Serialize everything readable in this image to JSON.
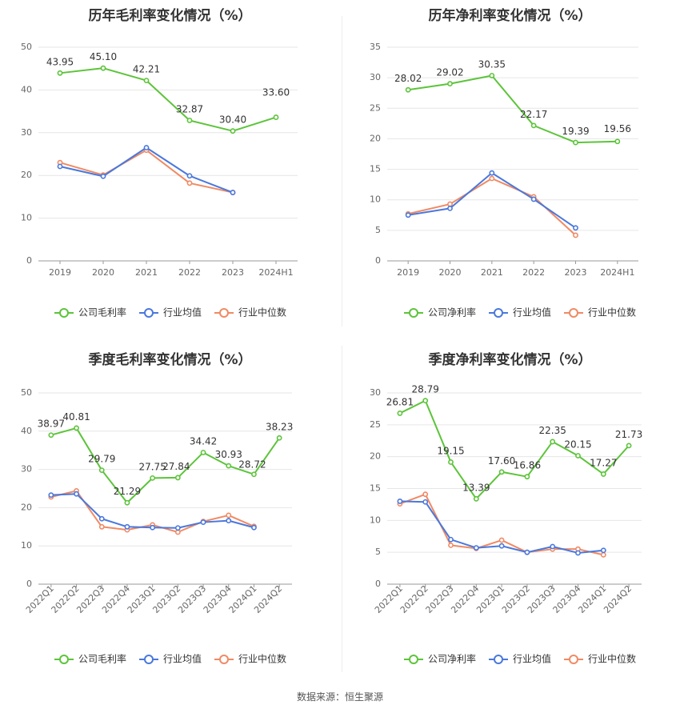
{
  "source": "数据来源：恒生聚源",
  "colors": {
    "company": "#5cc43a",
    "industry_avg": "#4a78dc",
    "industry_median": "#f08a64",
    "grid": "#e6e6e6",
    "axis": "#999999",
    "text": "#666666",
    "title": "#333333"
  },
  "chart_data": [
    {
      "type": "line",
      "title": "历年毛利率变化情况（%）",
      "categories": [
        "2019",
        "2020",
        "2021",
        "2022",
        "2023",
        "2024H1"
      ],
      "ylim": [
        0,
        50
      ],
      "yticks": [
        0,
        10,
        20,
        30,
        40,
        50
      ],
      "legend_position": "bottom",
      "rotate_x_labels": false,
      "series": [
        {
          "name": "公司毛利率",
          "color": "#5cc43a",
          "labels": true,
          "values": [
            43.95,
            45.1,
            42.21,
            32.87,
            30.4,
            33.6
          ],
          "value_labels": [
            "43.95",
            "45.10",
            "42.21",
            "32.87",
            "30.40",
            "33.60"
          ]
        },
        {
          "name": "行业均值",
          "color": "#4a78dc",
          "labels": false,
          "values": [
            22.1,
            19.8,
            26.5,
            19.9,
            16.0,
            null
          ]
        },
        {
          "name": "行业中位数",
          "color": "#f08a64",
          "labels": false,
          "values": [
            23.0,
            20.1,
            25.9,
            18.2,
            16.0,
            null
          ]
        }
      ]
    },
    {
      "type": "line",
      "title": "历年净利率变化情况（%）",
      "categories": [
        "2019",
        "2020",
        "2021",
        "2022",
        "2023",
        "2024H1"
      ],
      "ylim": [
        0,
        35
      ],
      "yticks": [
        0,
        5,
        10,
        15,
        20,
        25,
        30,
        35
      ],
      "legend_position": "bottom",
      "rotate_x_labels": false,
      "series": [
        {
          "name": "公司净利率",
          "color": "#5cc43a",
          "labels": true,
          "values": [
            28.02,
            29.02,
            30.35,
            22.17,
            19.39,
            19.56
          ],
          "value_labels": [
            "28.02",
            "29.02",
            "30.35",
            "22.17",
            "19.39",
            "19.56"
          ]
        },
        {
          "name": "行业均值",
          "color": "#4a78dc",
          "labels": false,
          "values": [
            7.5,
            8.6,
            14.4,
            10.1,
            5.4,
            null
          ]
        },
        {
          "name": "行业中位数",
          "color": "#f08a64",
          "labels": false,
          "values": [
            7.7,
            9.3,
            13.5,
            10.5,
            4.2,
            null
          ]
        }
      ]
    },
    {
      "type": "line",
      "title": "季度毛利率变化情况（%）",
      "categories": [
        "2022Q1",
        "2022Q2",
        "2022Q3",
        "2022Q4",
        "2023Q1",
        "2023Q2",
        "2023Q3",
        "2023Q4",
        "2024Q1",
        "2024Q2"
      ],
      "ylim": [
        0,
        50
      ],
      "yticks": [
        0,
        10,
        20,
        30,
        40,
        50
      ],
      "legend_position": "bottom",
      "rotate_x_labels": true,
      "series": [
        {
          "name": "公司毛利率",
          "color": "#5cc43a",
          "labels": true,
          "values": [
            38.97,
            40.81,
            29.79,
            21.29,
            27.75,
            27.84,
            34.42,
            30.93,
            28.72,
            38.23
          ],
          "value_labels": [
            "38.97",
            "40.81",
            "29.79",
            "21.29",
            "27.75",
            "27.84",
            "34.42",
            "30.93",
            "28.72",
            "38.23"
          ]
        },
        {
          "name": "行业均值",
          "color": "#4a78dc",
          "labels": false,
          "values": [
            23.3,
            23.6,
            17.1,
            15.0,
            14.8,
            14.7,
            16.2,
            16.6,
            14.8,
            null
          ]
        },
        {
          "name": "行业中位数",
          "color": "#f08a64",
          "labels": false,
          "values": [
            22.8,
            24.4,
            15.0,
            14.2,
            15.5,
            13.6,
            16.4,
            18.0,
            15.1,
            null
          ]
        }
      ]
    },
    {
      "type": "line",
      "title": "季度净利率变化情况（%）",
      "categories": [
        "2022Q1",
        "2022Q2",
        "2022Q3",
        "2022Q4",
        "2023Q1",
        "2023Q2",
        "2023Q3",
        "2023Q4",
        "2024Q1",
        "2024Q2"
      ],
      "ylim": [
        0,
        30
      ],
      "yticks": [
        0,
        5,
        10,
        15,
        20,
        25,
        30
      ],
      "legend_position": "bottom",
      "rotate_x_labels": true,
      "series": [
        {
          "name": "公司净利率",
          "color": "#5cc43a",
          "labels": true,
          "values": [
            26.81,
            28.79,
            19.15,
            13.39,
            17.6,
            16.86,
            22.35,
            20.15,
            17.27,
            21.73
          ],
          "value_labels": [
            "26.81",
            "28.79",
            "19.15",
            "13.39",
            "17.60",
            "16.86",
            "22.35",
            "20.15",
            "17.27",
            "21.73"
          ]
        },
        {
          "name": "行业均值",
          "color": "#4a78dc",
          "labels": false,
          "values": [
            13.0,
            12.9,
            7.0,
            5.7,
            6.0,
            5.0,
            5.9,
            4.9,
            5.3,
            null
          ]
        },
        {
          "name": "行业中位数",
          "color": "#f08a64",
          "labels": false,
          "values": [
            12.6,
            14.1,
            6.1,
            5.6,
            6.9,
            5.0,
            5.5,
            5.5,
            4.6,
            null
          ]
        }
      ]
    }
  ]
}
